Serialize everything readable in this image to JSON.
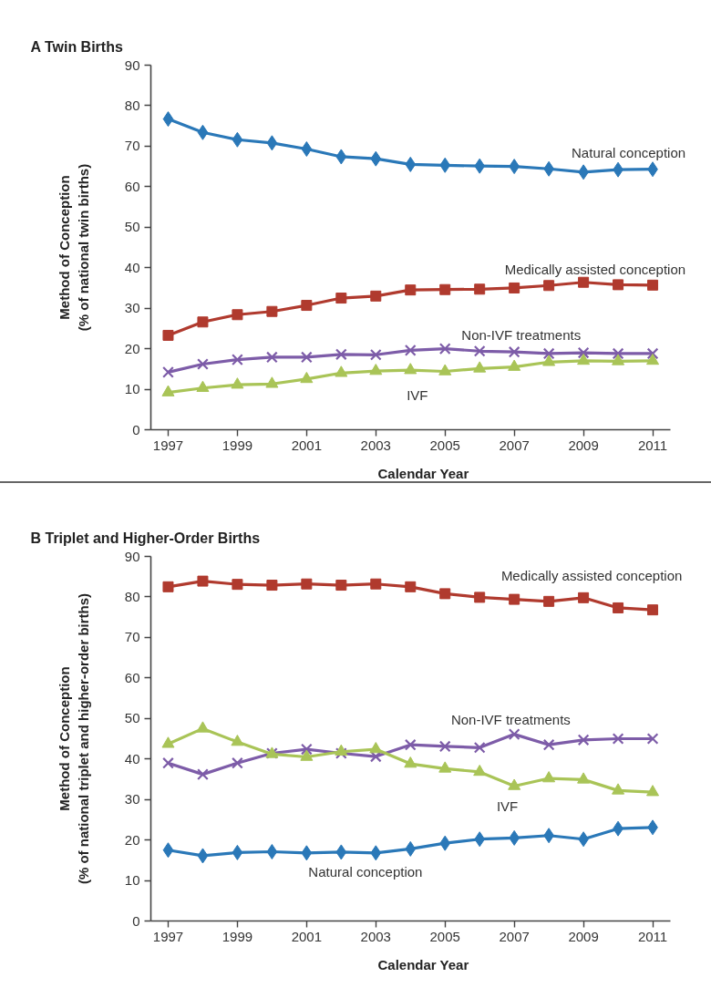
{
  "chart_data": [
    {
      "type": "line",
      "title": "A Twin Births",
      "xlabel": "Calendar Year",
      "ylabel": "Method of Conception\n(% of national twin births)",
      "x": [
        1997,
        1998,
        1999,
        2000,
        2001,
        2002,
        2003,
        2004,
        2005,
        2006,
        2007,
        2008,
        2009,
        2010,
        2011
      ],
      "xlim": [
        1996.5,
        2011.5
      ],
      "xticks": [
        1997,
        1999,
        2001,
        2003,
        2005,
        2007,
        2009,
        2011
      ],
      "ylim": [
        0,
        90
      ],
      "yticks": [
        0,
        10,
        20,
        30,
        40,
        50,
        60,
        70,
        80,
        90
      ],
      "series": [
        {
          "name": "Natural conception",
          "color": "#2a78b8",
          "marker": "diamond",
          "values": [
            76.7,
            73.4,
            71.6,
            70.8,
            69.3,
            67.4,
            66.9,
            65.5,
            65.3,
            65.1,
            65.0,
            64.4,
            63.6,
            64.2,
            64.3
          ]
        },
        {
          "name": "Medically assisted conception",
          "color": "#b03a2e",
          "marker": "square",
          "values": [
            23.3,
            26.6,
            28.4,
            29.2,
            30.7,
            32.5,
            33.0,
            34.5,
            34.6,
            34.7,
            35.0,
            35.6,
            36.4,
            35.8,
            35.7
          ]
        },
        {
          "name": "Non-IVF treatments",
          "color": "#7d5ca8",
          "marker": "cross",
          "values": [
            14.2,
            16.2,
            17.3,
            17.9,
            17.9,
            18.6,
            18.5,
            19.6,
            20.0,
            19.4,
            19.2,
            18.8,
            19.0,
            18.8,
            18.8
          ]
        },
        {
          "name": "IVF",
          "color": "#a9c457",
          "marker": "triangle",
          "values": [
            9.2,
            10.3,
            11.1,
            11.3,
            12.5,
            14.0,
            14.5,
            14.7,
            14.4,
            15.1,
            15.5,
            16.7,
            17.0,
            16.9,
            17.0
          ]
        }
      ]
    },
    {
      "type": "line",
      "title": "B Triplet and Higher-Order Births",
      "xlabel": "Calendar Year",
      "ylabel": "Method of Conception\n(% of national triplet and higher-order births)",
      "x": [
        1997,
        1998,
        1999,
        2000,
        2001,
        2002,
        2003,
        2004,
        2005,
        2006,
        2007,
        2008,
        2009,
        2010,
        2011
      ],
      "xlim": [
        1996.5,
        2011.5
      ],
      "xticks": [
        1997,
        1999,
        2001,
        2003,
        2005,
        2007,
        2009,
        2011
      ],
      "ylim": [
        0,
        90
      ],
      "yticks": [
        0,
        10,
        20,
        30,
        40,
        50,
        60,
        70,
        80,
        90
      ],
      "series": [
        {
          "name": "Natural conception",
          "color": "#2a78b8",
          "marker": "diamond",
          "values": [
            17.5,
            16.1,
            16.9,
            17.1,
            16.8,
            17.0,
            16.8,
            17.8,
            19.2,
            20.2,
            20.5,
            21.1,
            20.2,
            22.8,
            23.1
          ]
        },
        {
          "name": "Medically assisted conception",
          "color": "#b03a2e",
          "marker": "square",
          "values": [
            82.5,
            83.9,
            83.1,
            82.9,
            83.2,
            82.9,
            83.2,
            82.5,
            80.8,
            79.9,
            79.4,
            78.9,
            79.8,
            77.3,
            76.8
          ]
        },
        {
          "name": "Non-IVF treatments",
          "color": "#7d5ca8",
          "marker": "cross",
          "values": [
            39.0,
            36.2,
            39.0,
            41.4,
            42.4,
            41.4,
            40.6,
            43.5,
            43.1,
            42.8,
            46.1,
            43.5,
            44.7,
            45.0,
            45.0
          ]
        },
        {
          "name": "IVF",
          "color": "#a9c457",
          "marker": "triangle",
          "values": [
            43.7,
            47.5,
            44.2,
            41.2,
            40.5,
            41.8,
            42.4,
            38.8,
            37.6,
            36.8,
            33.3,
            35.2,
            34.9,
            32.2,
            31.8
          ]
        }
      ]
    }
  ]
}
